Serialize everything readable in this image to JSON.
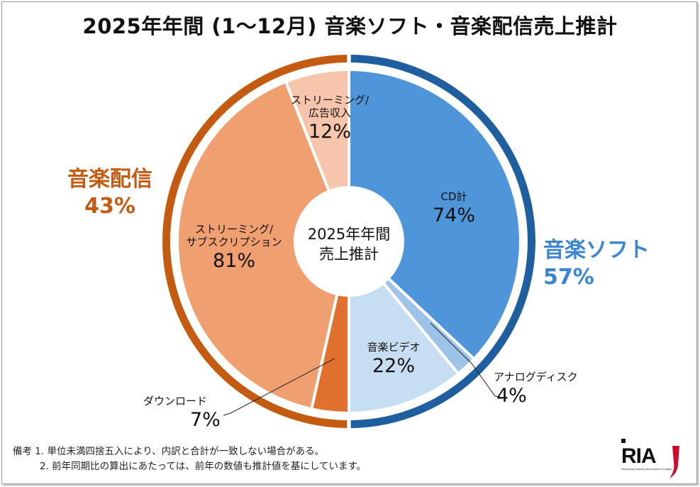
{
  "title": "2025年年間 (1〜12月) 音楽ソフト・音楽配信売上推計",
  "center_label": [
    "2025年年間",
    "売上推計"
  ],
  "chart_data": {
    "type": "pie",
    "title": "2025年年間 (1〜12月) 音楽ソフト・音楽配信売上推計",
    "groups": [
      {
        "name": "音楽ソフト",
        "share": 57,
        "color": "#1f5fa0",
        "slices": [
          {
            "label": "CD計",
            "value": 74,
            "color": "#4f95d9"
          },
          {
            "label": "アナログディスク",
            "value": 4,
            "color": "#9dc3e8"
          },
          {
            "label": "音楽ビデオ",
            "value": 22,
            "color": "#c6ddf2"
          }
        ]
      },
      {
        "name": "音楽配信",
        "share": 43,
        "color": "#c55a11",
        "slices": [
          {
            "label": "ダウンロード",
            "value": 7,
            "color": "#e0702d"
          },
          {
            "label": "ストリーミング/サブスクリプション",
            "value": 81,
            "color": "#f0a070"
          },
          {
            "label": "ストリーミング/広告収入",
            "value": 12,
            "color": "#f7c5ab"
          }
        ]
      }
    ],
    "unit": "%"
  },
  "labels": {
    "group_left_name": "音楽配信",
    "group_left_pct": "43%",
    "group_right_name": "音楽ソフト",
    "group_right_pct": "57%",
    "cd": {
      "name": "CD計",
      "pct": "74%"
    },
    "analog": {
      "name": "アナログディスク",
      "pct": "4%"
    },
    "video": {
      "name": "音楽ビデオ",
      "pct": "22%"
    },
    "download": {
      "name": "ダウンロード",
      "pct": "7%"
    },
    "subscription": {
      "name1": "ストリーミング/",
      "name2": "サブスクリプション",
      "pct": "81%"
    },
    "ad": {
      "name1": "ストリーミング/",
      "name2": "広告収入",
      "pct": "12%"
    }
  },
  "notes": [
    "備考 1. 単位未満四捨五入により、内訳と合計が一致しない場合がある。",
    "2. 前年同期比の算出にあたっては、前年の数値も推計値を基にしています。"
  ],
  "logo_text": "RIAJ"
}
